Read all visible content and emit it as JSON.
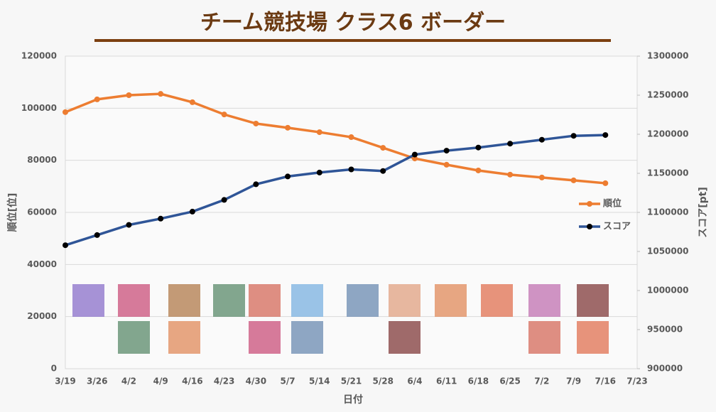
{
  "chart_data": {
    "type": "line",
    "title": "チーム競技場 クラス6 ボーダー",
    "x_label": "日付",
    "y_label": "順位[位]",
    "y2_label": "スコア[pt]",
    "categories": [
      "3/19",
      "3/26",
      "4/2",
      "4/9",
      "4/16",
      "4/23",
      "4/30",
      "5/7",
      "5/14",
      "5/21",
      "5/28",
      "6/4",
      "6/11",
      "6/18",
      "6/25",
      "7/2",
      "7/9",
      "7/16",
      "7/23"
    ],
    "series": [
      {
        "name": "順位",
        "color": "#ed7d31",
        "marker_color": "#ed7d31",
        "axis": "y",
        "values": [
          98500,
          103400,
          105000,
          105500,
          102300,
          97600,
          94100,
          92500,
          90800,
          88900,
          84800,
          80700,
          78300,
          76100,
          74500,
          73400,
          72300,
          71200,
          null
        ]
      },
      {
        "name": "スコア",
        "color": "#2f5597",
        "marker_color": "#000000",
        "axis": "y2",
        "values": [
          1058000,
          1071000,
          1084000,
          1092000,
          1101000,
          1116000,
          1136000,
          1146000,
          1151000,
          1155000,
          1153000,
          1174000,
          1179000,
          1183000,
          1188000,
          1193000,
          1198000,
          1199000,
          null
        ]
      }
    ],
    "ylim": [
      0,
      120000
    ],
    "yticks": [
      0,
      20000,
      40000,
      60000,
      80000,
      100000,
      120000
    ],
    "y2lim": [
      900000,
      1300000
    ],
    "y2ticks": [
      900000,
      950000,
      1000000,
      1050000,
      1100000,
      1150000,
      1200000,
      1250000,
      1300000
    ],
    "grid": true,
    "legend": "right"
  }
}
